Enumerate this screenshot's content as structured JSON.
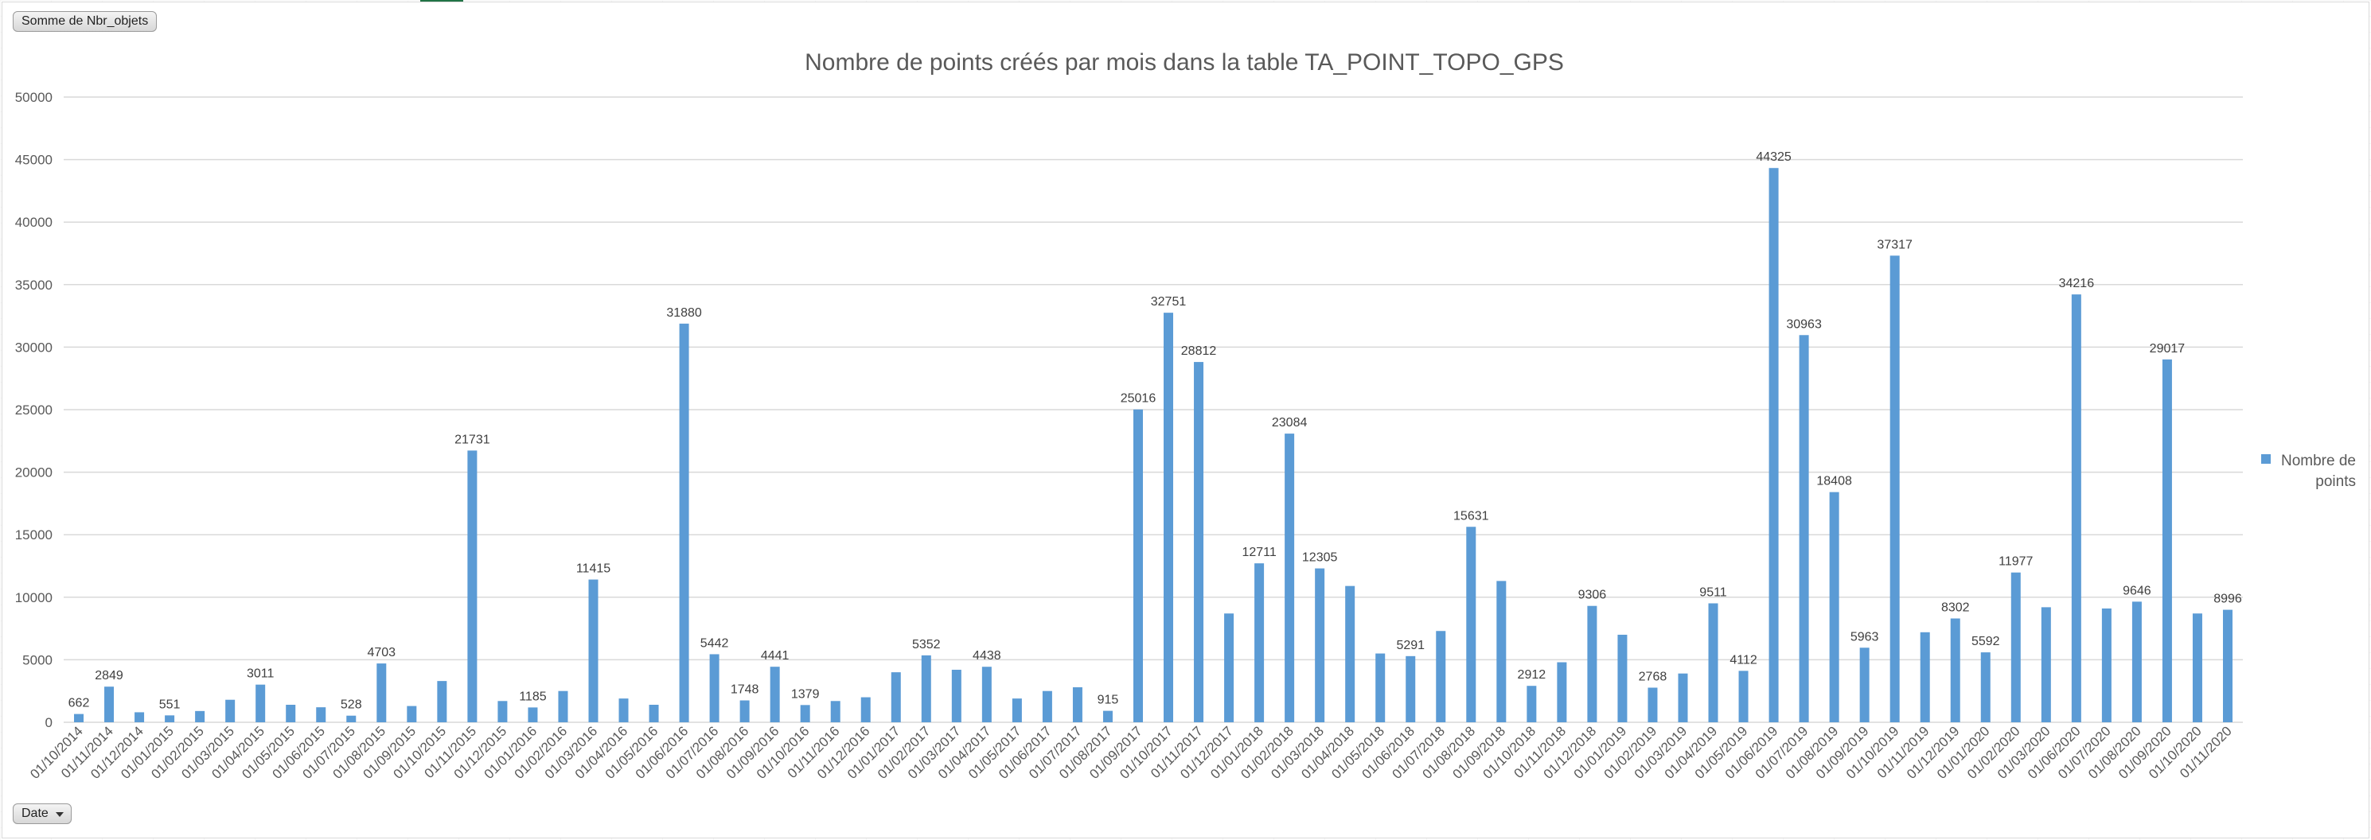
{
  "pivot": {
    "value_field_button": "Somme de Nbr_objets",
    "axis_field_button": "Date"
  },
  "colors": {
    "bar": "#5b9bd5",
    "gridline": "#d9d9d9",
    "text": "#595959"
  },
  "chart_data": {
    "type": "bar",
    "title": "Nombre de points créés par mois dans la table TA_POINT_TOPO_GPS",
    "xlabel": "",
    "ylabel": "",
    "ylim": [
      0,
      50000
    ],
    "yticks": [
      0,
      5000,
      10000,
      15000,
      20000,
      25000,
      30000,
      35000,
      40000,
      45000,
      50000
    ],
    "grid": true,
    "legend_position": "right",
    "categories": [
      "01/10/2014",
      "01/11/2014",
      "01/12/2014",
      "01/01/2015",
      "01/02/2015",
      "01/03/2015",
      "01/04/2015",
      "01/05/2015",
      "01/06/2015",
      "01/07/2015",
      "01/08/2015",
      "01/09/2015",
      "01/10/2015",
      "01/11/2015",
      "01/12/2015",
      "01/01/2016",
      "01/02/2016",
      "01/03/2016",
      "01/04/2016",
      "01/05/2016",
      "01/06/2016",
      "01/07/2016",
      "01/08/2016",
      "01/09/2016",
      "01/10/2016",
      "01/11/2016",
      "01/12/2016",
      "01/01/2017",
      "01/02/2017",
      "01/03/2017",
      "01/04/2017",
      "01/05/2017",
      "01/06/2017",
      "01/07/2017",
      "01/08/2017",
      "01/09/2017",
      "01/10/2017",
      "01/11/2017",
      "01/12/2017",
      "01/01/2018",
      "01/02/2018",
      "01/03/2018",
      "01/04/2018",
      "01/05/2018",
      "01/06/2018",
      "01/07/2018",
      "01/08/2018",
      "01/09/2018",
      "01/10/2018",
      "01/11/2018",
      "01/12/2018",
      "01/01/2019",
      "01/02/2019",
      "01/03/2019",
      "01/04/2019",
      "01/05/2019",
      "01/06/2019",
      "01/07/2019",
      "01/08/2019",
      "01/09/2019",
      "01/10/2019",
      "01/11/2019",
      "01/12/2019",
      "01/01/2020",
      "01/02/2020",
      "01/03/2020",
      "01/06/2020",
      "01/07/2020",
      "01/08/2020",
      "01/09/2020",
      "01/10/2020",
      "01/11/2020"
    ],
    "series": [
      {
        "name": "Nombre de points",
        "values": [
          662,
          2849,
          800,
          551,
          900,
          1800,
          3011,
          1400,
          1200,
          528,
          4703,
          1300,
          3300,
          21731,
          1700,
          1185,
          2500,
          11415,
          1900,
          1400,
          31880,
          5442,
          1748,
          4441,
          1379,
          1700,
          2000,
          4000,
          5352,
          4200,
          4438,
          1900,
          2500,
          2800,
          915,
          25016,
          32751,
          28812,
          8700,
          12711,
          23084,
          12305,
          10900,
          5500,
          5291,
          7300,
          15631,
          11300,
          2912,
          4800,
          9306,
          7000,
          2768,
          3900,
          9511,
          4112,
          44325,
          30963,
          18408,
          5963,
          37317,
          7200,
          8302,
          5592,
          11977,
          9200,
          34216,
          9100,
          9646,
          29017,
          8700,
          8996
        ]
      }
    ],
    "data_labels": {
      "0": 662,
      "1": 2849,
      "3": 551,
      "6": 3011,
      "9": 528,
      "10": 4703,
      "13": 21731,
      "15": 1185,
      "17": 11415,
      "20": 31880,
      "21": 5442,
      "22": 1748,
      "23": 4441,
      "24": 1379,
      "28": 5352,
      "30": 4438,
      "34": 915,
      "35": 25016,
      "36": 32751,
      "37": 28812,
      "39": 12711,
      "40": 23084,
      "41": 12305,
      "44": 5291,
      "46": 15631,
      "48": 2912,
      "50": 9306,
      "52": 2768,
      "54": 9511,
      "55": 4112,
      "56": 44325,
      "57": 30963,
      "58": 18408,
      "59": 5963,
      "60": 37317,
      "62": 8302,
      "63": 5592,
      "64": 11977,
      "66": 34216,
      "68": 9646,
      "69": 29017,
      "71": 8996
    }
  }
}
